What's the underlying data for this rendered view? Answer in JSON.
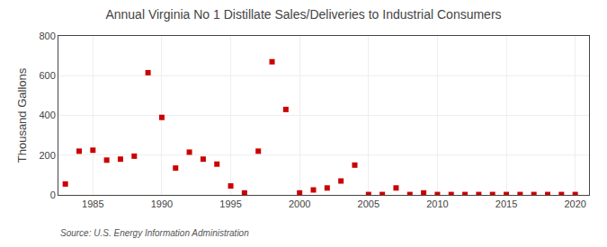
{
  "chart_data": {
    "type": "scatter",
    "title": "Annual Virginia No 1 Distillate Sales/Deliveries to Industrial Consumers",
    "y_label": "Thousand Gallons",
    "source": "Source: U.S. Energy Information Administration",
    "x": [
      1983,
      1984,
      1985,
      1986,
      1987,
      1988,
      1989,
      1990,
      1991,
      1992,
      1993,
      1994,
      1995,
      1996,
      1997,
      1998,
      1999,
      2000,
      2001,
      2002,
      2003,
      2004,
      2005,
      2006,
      2007,
      2008,
      2009,
      2010,
      2011,
      2012,
      2013,
      2014,
      2015,
      2016,
      2017,
      2018,
      2019,
      2020
    ],
    "values": [
      55,
      220,
      225,
      175,
      180,
      195,
      615,
      390,
      135,
      215,
      180,
      155,
      45,
      10,
      220,
      670,
      430,
      10,
      25,
      35,
      70,
      150,
      2,
      2,
      35,
      2,
      10,
      2,
      2,
      2,
      2,
      2,
      2,
      2,
      2,
      2,
      2,
      2
    ],
    "color": "#cc0000",
    "marker": "square",
    "xlim": [
      1982.5,
      2021
    ],
    "xticks": [
      1985,
      1990,
      1995,
      2000,
      2005,
      2010,
      2015,
      2020
    ],
    "ylim": [
      0,
      800
    ],
    "yticks": [
      0,
      200,
      400,
      600,
      800
    ],
    "grid": true
  }
}
